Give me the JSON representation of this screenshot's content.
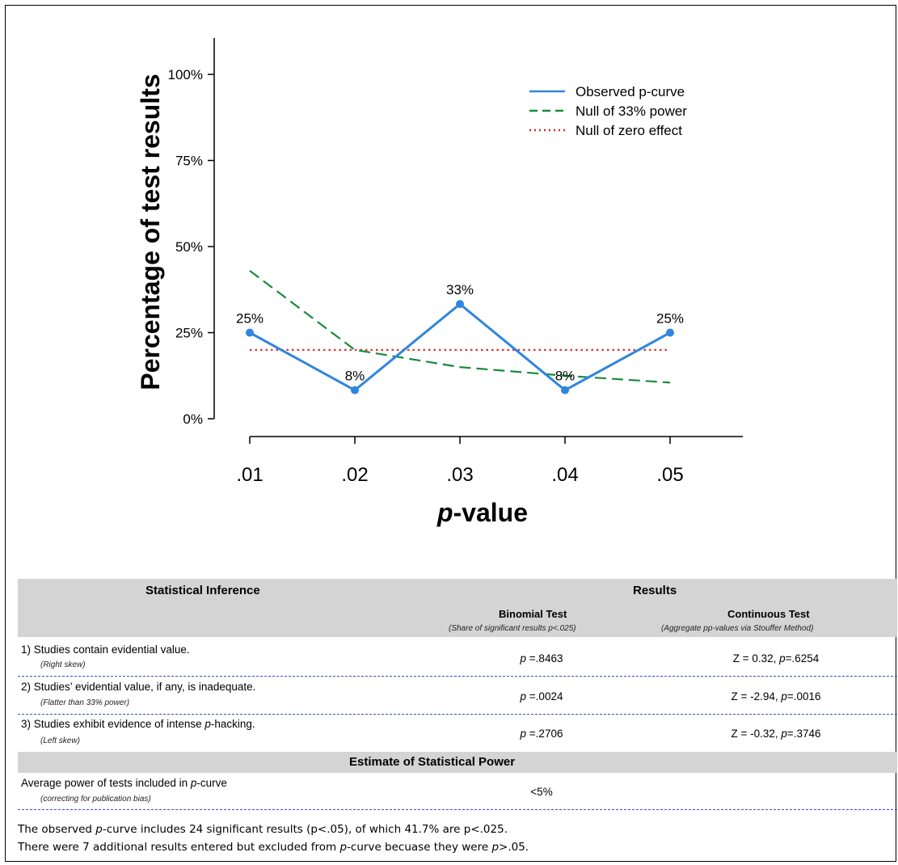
{
  "chart_data": {
    "type": "line",
    "x": [
      0.01,
      0.02,
      0.03,
      0.04,
      0.05
    ],
    "x_tick_labels": [
      ".01",
      ".02",
      ".03",
      ".04",
      ".05"
    ],
    "xlabel": "p-value",
    "ylabel": "Percentage of test results",
    "ylim": [
      0,
      100
    ],
    "y_ticks": [
      0,
      25,
      50,
      75,
      100
    ],
    "y_tick_labels": [
      "0%",
      "25%",
      "50%",
      "75%",
      "100%"
    ],
    "legend_position": "top-right",
    "series": [
      {
        "name": "Observed p-curve",
        "color": "#2e86de",
        "style": "solid",
        "values": [
          25,
          8.3,
          33.3,
          8.3,
          25
        ],
        "point_labels": [
          "25%",
          "8%",
          "33%",
          "8%",
          "25%"
        ]
      },
      {
        "name": "Null of 33% power",
        "color": "#1a8a3a",
        "style": "dashed",
        "values": [
          43,
          20,
          15,
          12.5,
          10.5
        ]
      },
      {
        "name": "Null of zero effect",
        "color": "#e02424",
        "style": "dotted",
        "values": [
          20,
          20,
          20,
          20,
          20
        ]
      }
    ]
  },
  "table": {
    "header_left": "Statistical Inference",
    "header_right": "Results",
    "binomial": {
      "title": "Binomial Test",
      "note": "(Share of significant results p<.025)"
    },
    "continuous": {
      "title": "Continuous Test",
      "note": "(Aggregate pp-values via Stouffer Method)"
    },
    "rows": [
      {
        "label": "1) Studies contain evidential value.",
        "note": "(Right skew)",
        "binomial": "p =.8463",
        "continuous": "Z = 0.32, p=.6254"
      },
      {
        "label": "2) Studies’ evidential value, if any, is inadequate.",
        "note": "(Flatter than 33% power)",
        "binomial": "p =.0024",
        "continuous": "Z = -2.94, p=.0016"
      },
      {
        "label": "3) Studies exhibit evidence of intense p-hacking.",
        "note": "(Left skew)",
        "binomial": "p =.2706",
        "continuous": "Z = -0.32, p=.3746"
      }
    ],
    "power_header": "Estimate of Statistical Power",
    "power_row": {
      "label": "Average power of tests included in p-curve",
      "note": "(correcting for publication bias)",
      "value": "<5%"
    },
    "footer_lines": [
      "The observed p-curve includes 24 significant results (p<.05), of which 41.7% are p<.025.",
      "There were 7 additional results entered but excluded from p-curve becuase they were p>.05."
    ]
  }
}
